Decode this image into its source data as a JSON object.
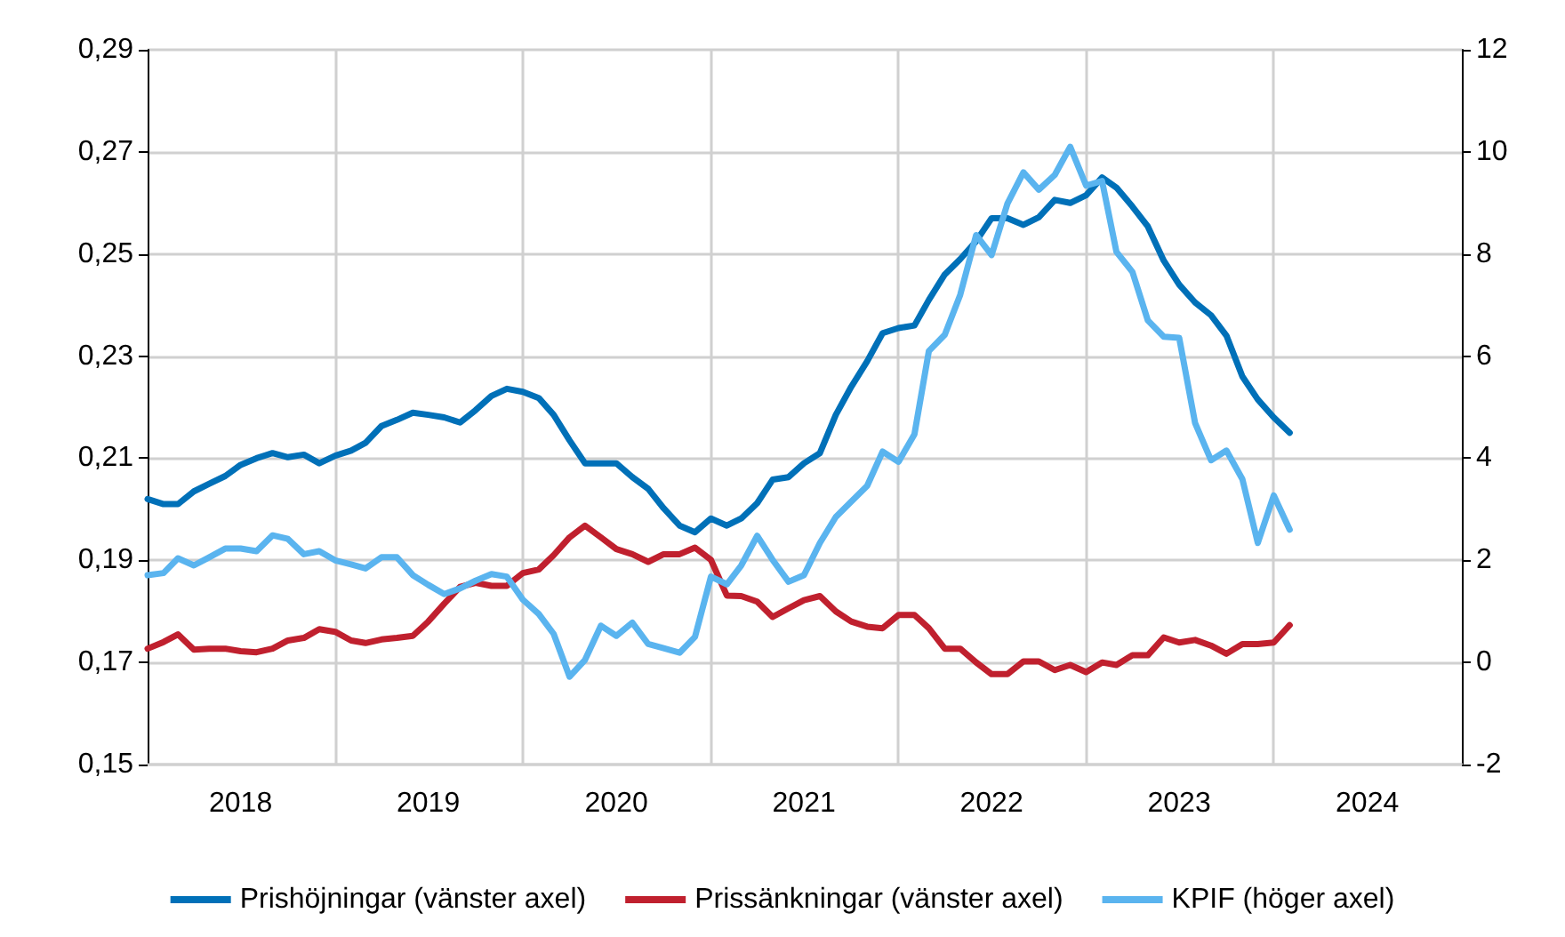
{
  "chart_data": {
    "type": "line",
    "legend": "bottom",
    "grid": true,
    "marker": "none",
    "line_style": "solid",
    "x": [
      "2018-01",
      "2018-02",
      "2018-03",
      "2018-04",
      "2018-05",
      "2018-06",
      "2018-07",
      "2018-08",
      "2018-09",
      "2018-10",
      "2018-11",
      "2018-12",
      "2019-01",
      "2019-02",
      "2019-03",
      "2019-04",
      "2019-05",
      "2019-06",
      "2019-07",
      "2019-08",
      "2019-09",
      "2019-10",
      "2019-11",
      "2019-12",
      "2020-01",
      "2020-02",
      "2020-03",
      "2020-04",
      "2020-05",
      "2020-06",
      "2020-07",
      "2020-08",
      "2020-09",
      "2020-10",
      "2020-11",
      "2020-12",
      "2021-01",
      "2021-02",
      "2021-03",
      "2021-04",
      "2021-05",
      "2021-06",
      "2021-07",
      "2021-08",
      "2021-09",
      "2021-10",
      "2021-11",
      "2021-12",
      "2022-01",
      "2022-02",
      "2022-03",
      "2022-04",
      "2022-05",
      "2022-06",
      "2022-07",
      "2022-08",
      "2022-09",
      "2022-10",
      "2022-11",
      "2022-12",
      "2023-01",
      "2023-02",
      "2023-03",
      "2023-04",
      "2023-05",
      "2023-06",
      "2023-07",
      "2023-08",
      "2023-09",
      "2023-10",
      "2023-11",
      "2023-12",
      "2024-01",
      "2024-02"
    ],
    "xlim": [
      "2018-01-01",
      "2025-01-01"
    ],
    "xticks": [
      {
        "value": "2018-07-01",
        "label": "2018"
      },
      {
        "value": "2019-07-01",
        "label": "2019"
      },
      {
        "value": "2020-07-01",
        "label": "2020"
      },
      {
        "value": "2021-07-01",
        "label": "2021"
      },
      {
        "value": "2022-07-01",
        "label": "2022"
      },
      {
        "value": "2023-07-01",
        "label": "2023"
      },
      {
        "value": "2024-07-01",
        "label": "2024"
      },
      {
        "value": "2019-01-01",
        "label": null
      },
      {
        "value": "2020-01-01",
        "label": null
      },
      {
        "value": "2021-01-01",
        "label": null
      },
      {
        "value": "2022-01-01",
        "label": null
      },
      {
        "value": "2023-01-01",
        "label": null
      },
      {
        "value": "2024-01-01",
        "label": null
      }
    ],
    "ylim": [
      0.15,
      0.29
    ],
    "yticks": [
      {
        "value": 0.15,
        "label": "0,15"
      },
      {
        "value": 0.17,
        "label": "0,17"
      },
      {
        "value": 0.19,
        "label": "0,19"
      },
      {
        "value": 0.21,
        "label": "0,21"
      },
      {
        "value": 0.23,
        "label": "0,23"
      },
      {
        "value": 0.25,
        "label": "0,25"
      },
      {
        "value": 0.27,
        "label": "0,27"
      },
      {
        "value": 0.29,
        "label": "0,29"
      }
    ],
    "y2lim": [
      -2,
      12
    ],
    "y2ticks": [
      -2,
      0,
      2,
      4,
      6,
      8,
      10,
      12
    ],
    "series": [
      {
        "name": "Prishöjningar (vänster axel)",
        "color": "#0070b8",
        "values": [
          0.202,
          0.201,
          0.201,
          0.2035,
          0.205,
          0.2065,
          0.2087,
          0.21,
          0.211,
          0.2102,
          0.2107,
          0.209,
          0.2105,
          0.2115,
          0.213,
          0.2163,
          0.2175,
          0.2189,
          0.2185,
          0.218,
          0.217,
          0.2194,
          0.2222,
          0.2236,
          0.223,
          0.2218,
          0.2185,
          0.2135,
          0.209,
          0.209,
          0.209,
          0.2063,
          0.204,
          0.2002,
          0.1968,
          0.1955,
          0.1982,
          0.1968,
          0.1982,
          0.2012,
          0.2058,
          0.2063,
          0.209,
          0.211,
          0.2185,
          0.224,
          0.229,
          0.2345,
          0.2355,
          0.236,
          0.241,
          0.246,
          0.249,
          0.2525,
          0.257,
          0.257,
          0.2557,
          0.2572,
          0.2606,
          0.26,
          0.2615,
          0.265,
          0.263,
          0.2593,
          0.2554,
          0.2487,
          0.244,
          0.2405,
          0.238,
          0.234,
          0.226,
          0.2215,
          0.218,
          0.215
        ]
      },
      {
        "name": "Prissänkningar (vänster axel)",
        "color": "#c0202e",
        "values": [
          0.1727,
          0.174,
          0.1755,
          0.1725,
          0.1727,
          0.1727,
          0.1722,
          0.172,
          0.1727,
          0.1743,
          0.1748,
          0.1765,
          0.176,
          0.1743,
          0.1738,
          0.1745,
          0.1748,
          0.1752,
          0.178,
          0.1815,
          0.1848,
          0.1856,
          0.185,
          0.185,
          0.1875,
          0.1882,
          0.191,
          0.1945,
          0.1968,
          0.1945,
          0.1922,
          0.1912,
          0.1897,
          0.1912,
          0.1912,
          0.1925,
          0.1901,
          0.1831,
          0.183,
          0.1819,
          0.1789,
          0.1806,
          0.1822,
          0.183,
          0.18,
          0.178,
          0.177,
          0.1767,
          0.1793,
          0.1793,
          0.1767,
          0.1727,
          0.1727,
          0.17,
          0.1677,
          0.1677,
          0.1702,
          0.1702,
          0.1685,
          0.1695,
          0.1681,
          0.17,
          0.1695,
          0.1714,
          0.1714,
          0.1749,
          0.1739,
          0.1744,
          0.1733,
          0.1717,
          0.1736,
          0.1736,
          0.1739,
          0.1773
        ]
      },
      {
        "name": "KPIF (höger axel)",
        "color": "#5ab4ef",
        "axis": "y2",
        "values": [
          1.71,
          1.75,
          2.04,
          1.9,
          2.06,
          2.23,
          2.23,
          2.18,
          2.49,
          2.42,
          2.12,
          2.18,
          2.0,
          1.92,
          1.84,
          2.06,
          2.06,
          1.71,
          1.52,
          1.34,
          1.45,
          1.6,
          1.73,
          1.68,
          1.23,
          0.95,
          0.56,
          -0.28,
          0.05,
          0.72,
          0.52,
          0.78,
          0.36,
          0.28,
          0.19,
          0.5,
          1.68,
          1.53,
          1.9,
          2.48,
          2.01,
          1.58,
          1.71,
          2.34,
          2.85,
          3.15,
          3.46,
          4.13,
          3.93,
          4.47,
          6.1,
          6.42,
          7.2,
          8.37,
          7.98,
          8.99,
          9.6,
          9.26,
          9.55,
          10.1,
          9.34,
          9.43,
          8.04,
          7.65,
          6.7,
          6.38,
          6.36,
          4.69,
          3.96,
          4.15,
          3.59,
          2.34,
          3.27,
          2.6
        ]
      }
    ]
  }
}
